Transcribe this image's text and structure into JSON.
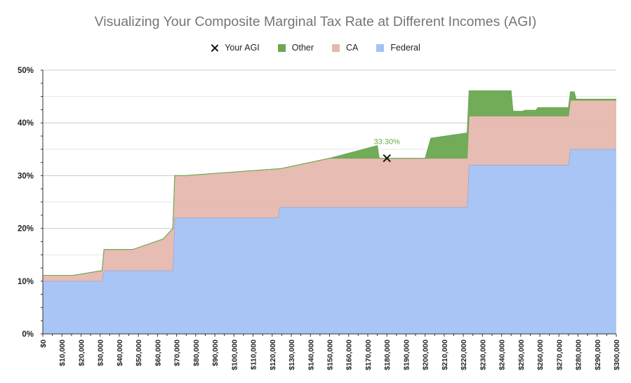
{
  "title": "Visualizing Your Composite Marginal Tax Rate at Different Incomes (AGI)",
  "legend": [
    {
      "label": "Your AGI",
      "kind": "marker"
    },
    {
      "label": "Other",
      "color": "#6aa84f"
    },
    {
      "label": "CA",
      "color": "#e6b8af"
    },
    {
      "label": "Federal",
      "color": "#a4c2f4"
    }
  ],
  "chart_data": {
    "type": "area",
    "stacked": true,
    "title": "Visualizing Your Composite Marginal Tax Rate at Different Incomes (AGI)",
    "xlabel": "",
    "ylabel": "",
    "x_range": [
      0,
      300000
    ],
    "y_range": [
      0,
      0.5
    ],
    "y_ticks": [
      {
        "v": 0,
        "label": "0%"
      },
      {
        "v": 0.1,
        "label": "10%"
      },
      {
        "v": 0.2,
        "label": "20%"
      },
      {
        "v": 0.3,
        "label": "30%"
      },
      {
        "v": 0.4,
        "label": "40%"
      },
      {
        "v": 0.5,
        "label": "50%"
      }
    ],
    "x_tick_labels": [
      "$0",
      "$10,000",
      "$20,000",
      "$30,000",
      "$40,000",
      "$50,000",
      "$60,000",
      "$70,000",
      "$80,000",
      "$90,000",
      "$100,000",
      "$110,000",
      "$120,000",
      "$130,000",
      "$140,000",
      "$150,000",
      "$160,000",
      "$170,000",
      "$180,000",
      "$190,000",
      "$200,000",
      "$210,000",
      "$220,000",
      "$230,000",
      "$240,000",
      "$250,000",
      "$260,000",
      "$270,000",
      "$280,000",
      "$290,000",
      "$300,000"
    ],
    "grid": true,
    "legend_position": "top",
    "series": [
      {
        "name": "Federal",
        "color": "#a4c2f4",
        "steps": [
          [
            0,
            0.1
          ],
          [
            31000,
            0.1
          ],
          [
            32000,
            0.12
          ],
          [
            68000,
            0.12
          ],
          [
            69000,
            0.22
          ],
          [
            123000,
            0.22
          ],
          [
            124000,
            0.24
          ],
          [
            222000,
            0.24
          ],
          [
            223000,
            0.32
          ],
          [
            275000,
            0.32
          ],
          [
            276000,
            0.35
          ],
          [
            300000,
            0.35
          ]
        ]
      },
      {
        "name": "CA",
        "color": "#e6b8af",
        "steps": [
          [
            0,
            0.011
          ],
          [
            16000,
            0.011
          ],
          [
            16000,
            0.02
          ],
          [
            31000,
            0.02
          ],
          [
            32000,
            0.04
          ],
          [
            47000,
            0.04
          ],
          [
            47000,
            0.06
          ],
          [
            63000,
            0.06
          ],
          [
            63000,
            0.08
          ],
          [
            68000,
            0.08
          ],
          [
            69000,
            0.08
          ],
          [
            74000,
            0.08
          ],
          [
            74000,
            0.093
          ],
          [
            123000,
            0.093
          ],
          [
            124000,
            0.073
          ],
          [
            124000,
            0.093
          ],
          [
            222000,
            0.093
          ],
          [
            223000,
            0.093
          ],
          [
            275000,
            0.093
          ],
          [
            276000,
            0.093
          ],
          [
            300000,
            0.093
          ]
        ]
      },
      {
        "name": "Other",
        "color": "#6aa84f",
        "steps": [
          [
            0,
            0
          ],
          [
            150000,
            0
          ],
          [
            150000,
            0.024
          ],
          [
            175000,
            0.024
          ],
          [
            176000,
            0
          ],
          [
            200000,
            0
          ],
          [
            200000,
            0.038
          ],
          [
            203000,
            0.038
          ],
          [
            203000,
            0.048
          ],
          [
            222000,
            0.048
          ],
          [
            223000,
            0.048
          ],
          [
            245000,
            0.048
          ],
          [
            246000,
            0.009
          ],
          [
            251000,
            0.009
          ],
          [
            252000,
            0.011
          ],
          [
            258000,
            0.011
          ],
          [
            259000,
            0.016
          ],
          [
            275000,
            0.016
          ],
          [
            276000,
            0.016
          ],
          [
            278000,
            0.016
          ],
          [
            279000,
            0.002
          ],
          [
            300000,
            0.002
          ]
        ]
      }
    ],
    "your_agi": {
      "x": 180000,
      "y": 0.333,
      "label": "33.30%"
    }
  }
}
